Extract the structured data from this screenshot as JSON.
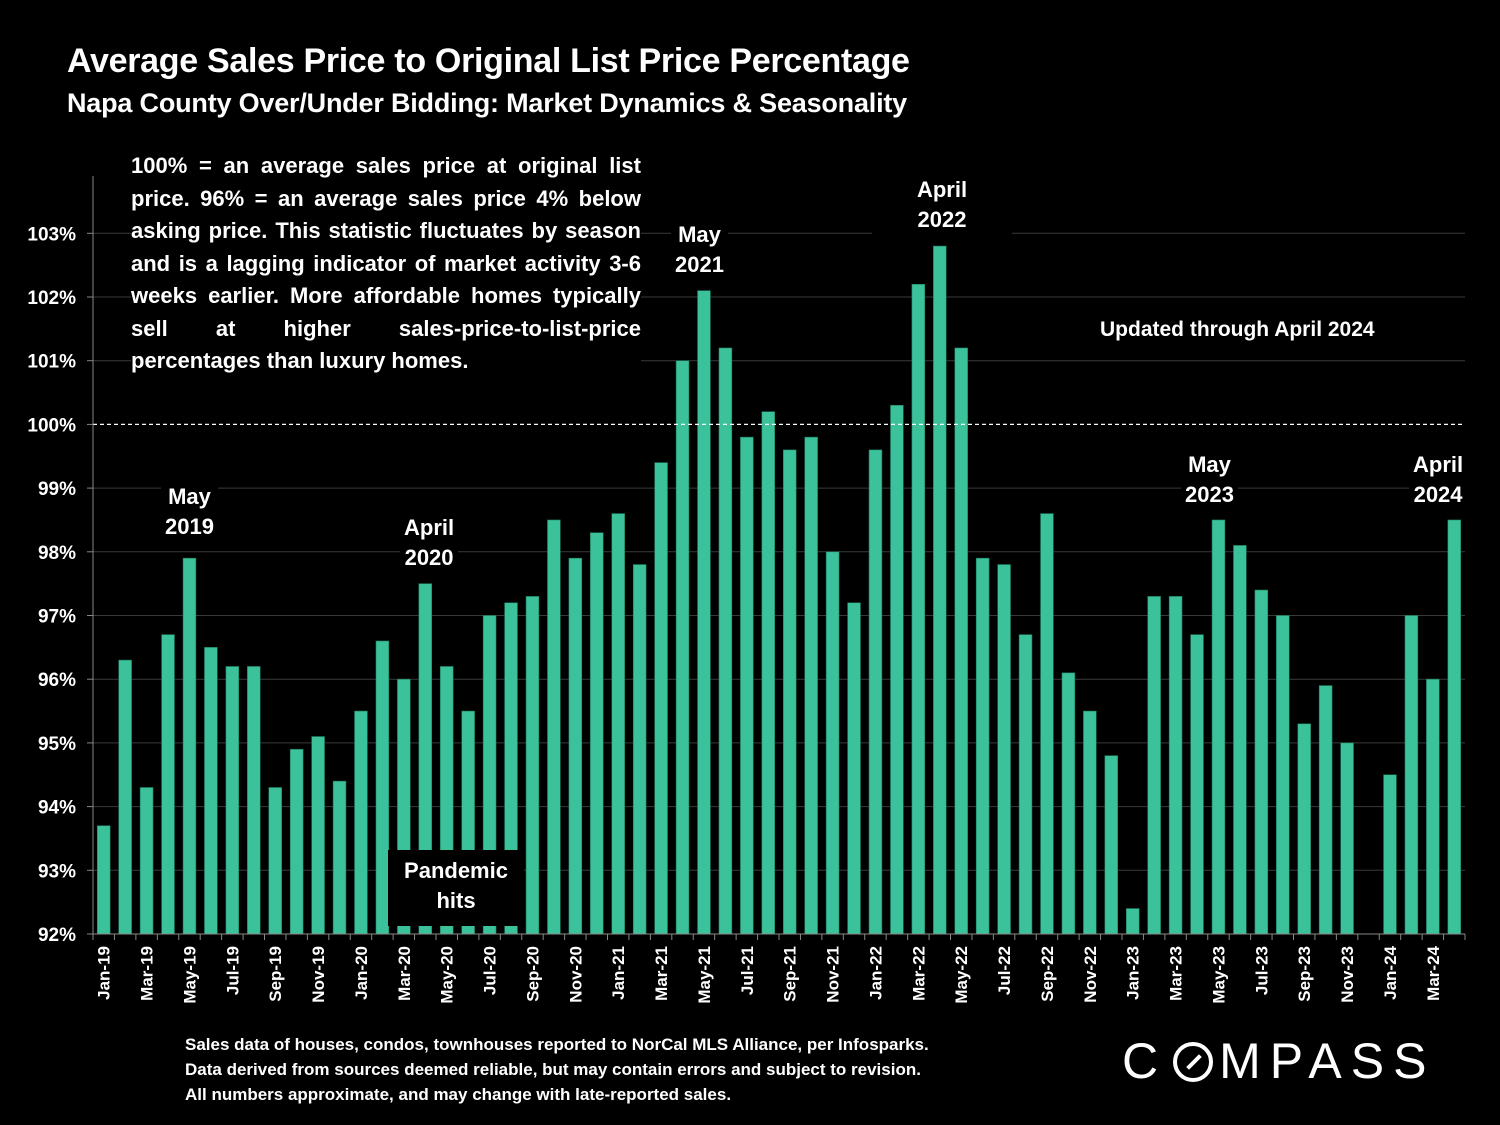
{
  "chart_data": {
    "type": "bar",
    "title": "Average Sales Price to Original List Price Percentage",
    "subtitle": "Napa County Over/Under Bidding: Market Dynamics & Seasonality",
    "xlabel": "",
    "ylabel": "",
    "ylim": [
      92,
      103.9
    ],
    "yticks": [
      92,
      93,
      94,
      95,
      96,
      97,
      98,
      99,
      100,
      101,
      102,
      103
    ],
    "ytick_labels": [
      "92%",
      "93%",
      "94%",
      "95%",
      "96%",
      "97%",
      "98%",
      "99%",
      "100%",
      "101%",
      "102%",
      "103%"
    ],
    "grid": true,
    "reference_line": 100,
    "bar_color": "#3cc29a",
    "categories": [
      "Jan-19",
      "Feb-19",
      "Mar-19",
      "Apr-19",
      "May-19",
      "Jun-19",
      "Jul-19",
      "Aug-19",
      "Sep-19",
      "Oct-19",
      "Nov-19",
      "Dec-19",
      "Jan-20",
      "Feb-20",
      "Mar-20",
      "Apr-20",
      "May-20",
      "Jun-20",
      "Jul-20",
      "Aug-20",
      "Sep-20",
      "Oct-20",
      "Nov-20",
      "Dec-20",
      "Jan-21",
      "Feb-21",
      "Mar-21",
      "Apr-21",
      "May-21",
      "Jun-21",
      "Jul-21",
      "Aug-21",
      "Sep-21",
      "Oct-21",
      "Nov-21",
      "Dec-21",
      "Jan-22",
      "Feb-22",
      "Mar-22",
      "Apr-22",
      "May-22",
      "Jun-22",
      "Jul-22",
      "Aug-22",
      "Sep-22",
      "Oct-22",
      "Nov-22",
      "Dec-22",
      "Jan-23",
      "Feb-23",
      "Mar-23",
      "Apr-23",
      "May-23",
      "Jun-23",
      "Jul-23",
      "Aug-23",
      "Sep-23",
      "Oct-23",
      "Nov-23",
      "Dec-23",
      "Jan-24",
      "Feb-24",
      "Mar-24",
      "Apr-24"
    ],
    "visible_xtick_labels": [
      "Jan-19",
      "Mar-19",
      "May-19",
      "Jul-19",
      "Sep-19",
      "Nov-19",
      "Jan-20",
      "Mar-20",
      "May-20",
      "Jul-20",
      "Sep-20",
      "Nov-20",
      "Jan-21",
      "Mar-21",
      "May-21",
      "Jul-21",
      "Sep-21",
      "Nov-21",
      "Jan-22",
      "Mar-22",
      "May-22",
      "Jul-22",
      "Sep-22",
      "Nov-22",
      "Jan-23",
      "Mar-23",
      "May-23",
      "Jul-23",
      "Sep-23",
      "Nov-23",
      "Jan-24",
      "Mar-24"
    ],
    "values": [
      93.7,
      96.3,
      94.3,
      96.7,
      97.9,
      96.5,
      96.2,
      96.2,
      94.3,
      94.9,
      95.1,
      94.4,
      95.5,
      96.6,
      96.0,
      97.5,
      96.2,
      95.5,
      97.0,
      97.2,
      97.3,
      98.5,
      97.9,
      98.3,
      98.6,
      97.8,
      99.4,
      101.0,
      102.1,
      101.2,
      99.8,
      100.2,
      99.6,
      99.8,
      98.0,
      97.2,
      99.6,
      100.3,
      102.2,
      102.8,
      101.2,
      97.9,
      97.8,
      96.7,
      98.6,
      96.1,
      95.5,
      94.8,
      92.4,
      97.3,
      97.3,
      96.7,
      98.5,
      98.1,
      97.4,
      97.0,
      95.3,
      95.9,
      95.0,
      92.0,
      94.5,
      97.0,
      96.0,
      98.5
    ],
    "annotations": [
      {
        "label": "May 2019",
        "lines": [
          "May",
          "2019"
        ],
        "category": "May-19"
      },
      {
        "label": "April 2020",
        "lines": [
          "April",
          "2020"
        ],
        "category": "Apr-20"
      },
      {
        "label": "May 2021",
        "lines": [
          "May",
          "2021"
        ],
        "category": "May-21"
      },
      {
        "label": "April 2022",
        "lines": [
          "April",
          "2022"
        ],
        "category": "Apr-22"
      },
      {
        "label": "May 2023",
        "lines": [
          "May",
          "2023"
        ],
        "category": "May-23"
      },
      {
        "label": "April 2024",
        "lines": [
          "April",
          "2024"
        ],
        "category": "Apr-24"
      },
      {
        "label": "Pandemic hits",
        "lines": [
          "Pandemic",
          "hits"
        ],
        "category": "Apr-20"
      }
    ]
  },
  "note": "100% = an average sales price at original list price. 96% = an average sales price 4% below asking price. This statistic fluctuates by season and is a lagging indicator of market activity 3-6 weeks earlier. More affordable homes typically sell at higher sales-price-to-list-price percentages than luxury homes.",
  "updated": "Updated through April 2024",
  "source_lines": [
    "Sales data of houses, condos, townhouses reported to NorCal MLS Alliance, per Infosparks.",
    "Data derived from sources deemed reliable, but may contain errors and subject to revision.",
    "All numbers approximate, and may change with late-reported sales."
  ],
  "logo": {
    "left": "C",
    "right": "MPASS"
  }
}
